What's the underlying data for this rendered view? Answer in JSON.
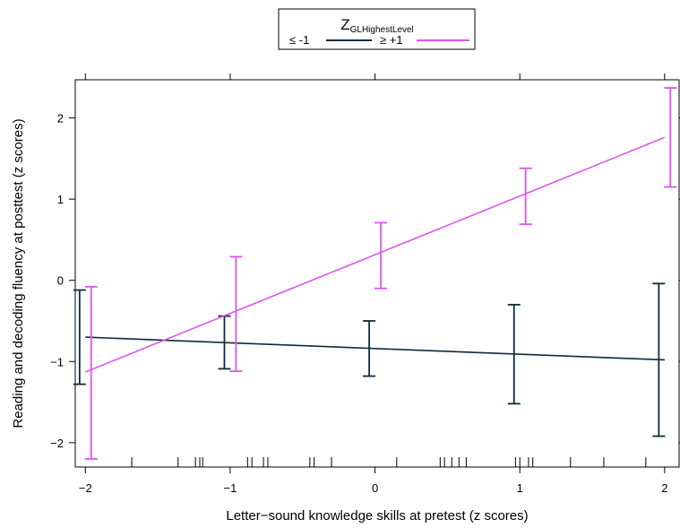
{
  "chart_data": {
    "type": "line",
    "xlabel": "Letter−sound knowledge skills at pretest (z scores)",
    "ylabel": "Reading and decoding fluency at posttest (z scores)",
    "xlim": [
      -2.07,
      2.1
    ],
    "ylim": [
      -2.3,
      2.47
    ],
    "x_ticks": [
      -2,
      -1,
      0,
      1,
      2
    ],
    "x_tick_labels": [
      "−2",
      "−1",
      "0",
      "1",
      "2"
    ],
    "y_ticks": [
      -2,
      -1,
      0,
      1,
      2
    ],
    "y_tick_labels": [
      "−2",
      "−1",
      "0",
      "1",
      "2"
    ],
    "grid": false,
    "legend": {
      "position": "top",
      "title_main": "Z",
      "title_sub": "GLHighestLevel",
      "entries": [
        "≤ -1",
        "≥ +1"
      ]
    },
    "series": [
      {
        "name": "≤ -1",
        "color": "#0d2b3b",
        "line": {
          "x": [
            -2.0,
            2.0
          ],
          "y": [
            -0.7,
            -0.98
          ]
        },
        "errorbars": [
          {
            "x": -2.04,
            "lo": -1.28,
            "hi": -0.12
          },
          {
            "x": -1.04,
            "lo": -1.09,
            "hi": -0.44
          },
          {
            "x": -0.04,
            "lo": -1.18,
            "hi": -0.5
          },
          {
            "x": 0.96,
            "lo": -1.52,
            "hi": -0.3
          },
          {
            "x": 1.96,
            "lo": -1.92,
            "hi": -0.04
          }
        ]
      },
      {
        "name": "≥ +1",
        "color": "#dd55ee",
        "line": {
          "x": [
            -2.0,
            2.0
          ],
          "y": [
            -1.13,
            1.76
          ]
        },
        "errorbars": [
          {
            "x": -1.96,
            "lo": -2.2,
            "hi": -0.08
          },
          {
            "x": -0.96,
            "lo": -1.12,
            "hi": 0.29
          },
          {
            "x": 0.04,
            "lo": -0.1,
            "hi": 0.71
          },
          {
            "x": 1.04,
            "lo": 0.69,
            "hi": 1.38
          },
          {
            "x": 2.04,
            "lo": 1.15,
            "hi": 2.37
          }
        ]
      }
    ],
    "rug_x": [
      -1.68,
      -1.36,
      -1.24,
      -1.21,
      -1.19,
      -0.88,
      -0.85,
      -0.77,
      -0.74,
      -0.45,
      -0.42,
      -0.3,
      0.15,
      0.45,
      0.48,
      0.53,
      0.58,
      0.63,
      0.97,
      1.0,
      1.06,
      1.09,
      1.35,
      1.58,
      1.87
    ]
  }
}
